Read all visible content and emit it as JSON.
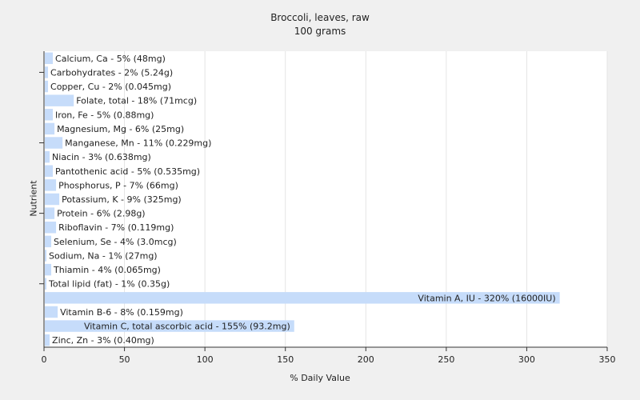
{
  "chart_data": {
    "type": "bar",
    "orientation": "horizontal",
    "title": "Broccoli, leaves, raw",
    "subtitle": "100 grams",
    "xlabel": "% Daily Value",
    "ylabel": "Nutrient",
    "xlim": [
      0,
      350
    ],
    "xticks": [
      0,
      50,
      100,
      150,
      200,
      250,
      300,
      350
    ],
    "grid": true,
    "bar_color": "#c6dcfa",
    "categories": [
      "Calcium, Ca",
      "Carbohydrates",
      "Copper, Cu",
      "Folate, total",
      "Iron, Fe",
      "Magnesium, Mg",
      "Manganese, Mn",
      "Niacin",
      "Pantothenic acid",
      "Phosphorus, P",
      "Potassium, K",
      "Protein",
      "Riboflavin",
      "Selenium, Se",
      "Sodium, Na",
      "Thiamin",
      "Total lipid (fat)",
      "Vitamin A, IU",
      "Vitamin B-6",
      "Vitamin C, total ascorbic acid",
      "Zinc, Zn"
    ],
    "values": [
      5,
      2,
      2,
      18,
      5,
      6,
      11,
      3,
      5,
      7,
      9,
      6,
      7,
      4,
      1,
      4,
      1,
      320,
      8,
      155,
      3
    ],
    "labels": [
      "Calcium, Ca - 5% (48mg)",
      "Carbohydrates - 2% (5.24g)",
      "Copper, Cu - 2% (0.045mg)",
      "Folate, total - 18% (71mcg)",
      "Iron, Fe - 5% (0.88mg)",
      "Magnesium, Mg - 6% (25mg)",
      "Manganese, Mn - 11% (0.229mg)",
      "Niacin - 3% (0.638mg)",
      "Pantothenic acid - 5% (0.535mg)",
      "Phosphorus, P - 7% (66mg)",
      "Potassium, K - 9% (325mg)",
      "Protein - 6% (2.98g)",
      "Riboflavin - 7% (0.119mg)",
      "Selenium, Se - 4% (3.0mcg)",
      "Sodium, Na - 1% (27mg)",
      "Thiamin - 4% (0.065mg)",
      "Total lipid (fat) - 1% (0.35g)",
      "Vitamin A, IU - 320% (16000IU)",
      "Vitamin B-6 - 8% (0.159mg)",
      "Vitamin C, total ascorbic acid - 155% (93.2mg)",
      "Zinc, Zn - 3% (0.40mg)"
    ]
  }
}
